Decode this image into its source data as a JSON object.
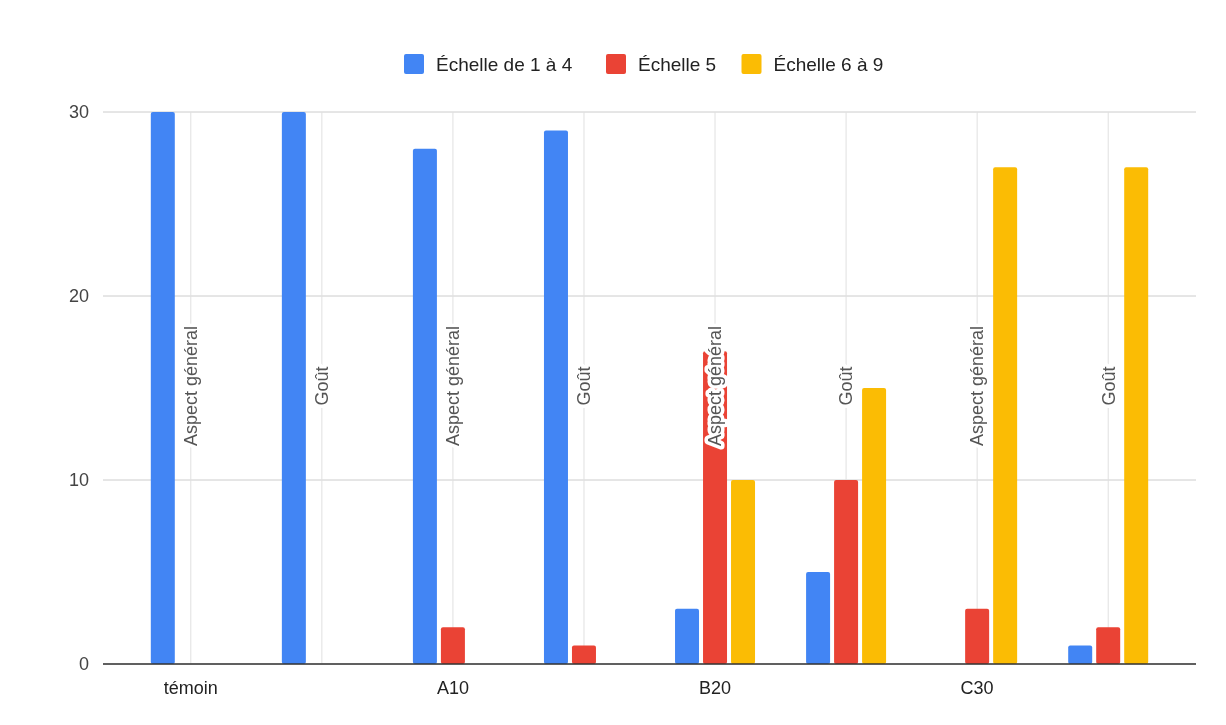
{
  "chart_data": {
    "type": "bar",
    "categories": [
      "témoin",
      null,
      "A10",
      null,
      "B20",
      null,
      "C30",
      null
    ],
    "series": [
      {
        "name": "Échelle de 1 à 4",
        "color": "#4285f4",
        "values": [
          30,
          30,
          28,
          29,
          3,
          5,
          0,
          1
        ]
      },
      {
        "name": "Échelle 5",
        "color": "#ea4335",
        "values": [
          0,
          0,
          2,
          1,
          17,
          10,
          3,
          2
        ]
      },
      {
        "name": "Échelle 6 à 9",
        "color": "#fbbc04",
        "values": [
          0,
          0,
          0,
          0,
          10,
          15,
          27,
          27
        ]
      }
    ],
    "annotations": [
      "Aspect général",
      "Goût",
      "Aspect général",
      "Goût",
      "Aspect général",
      "Goût",
      "Aspect général",
      "Goût"
    ],
    "ylim": [
      0,
      30
    ],
    "yticks": [
      0,
      10,
      20,
      30
    ],
    "grid": true,
    "legend": "top"
  }
}
